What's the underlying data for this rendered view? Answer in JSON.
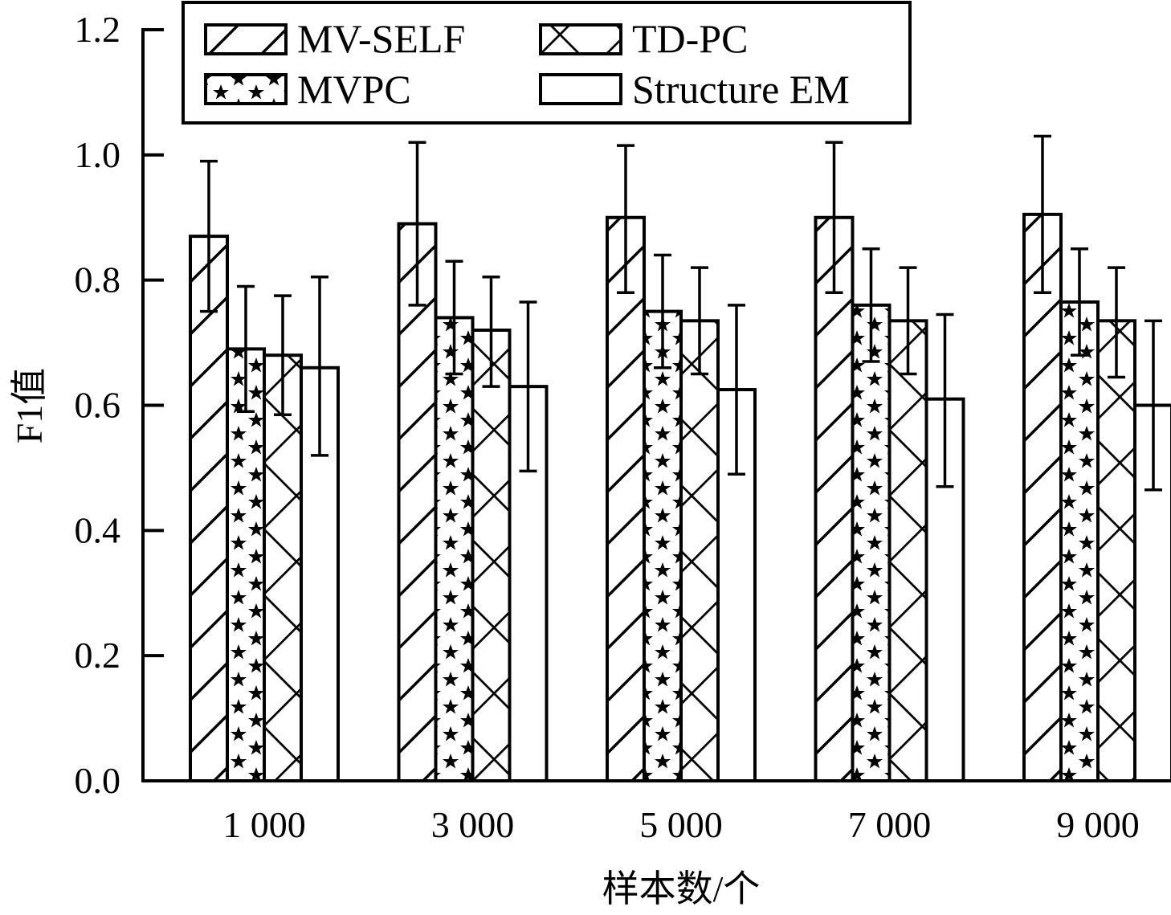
{
  "chart_data": {
    "type": "bar",
    "title": "",
    "xlabel": "样本数/个",
    "ylabel": "F1值",
    "ylim": [
      0,
      1.2
    ],
    "yticks": [
      "0.0",
      "0.2",
      "0.4",
      "0.6",
      "0.8",
      "1.0",
      "1.2"
    ],
    "categories": [
      "1 000",
      "3 000",
      "5 000",
      "7 000",
      "9 000"
    ],
    "legend_position": "top",
    "grid": false,
    "series": [
      {
        "name": "MV-SELF",
        "pattern": "diagonal-hatch",
        "values": [
          0.87,
          0.89,
          0.9,
          0.9,
          0.905
        ],
        "err_low": [
          0.75,
          0.76,
          0.78,
          0.78,
          0.78
        ],
        "err_high": [
          0.99,
          1.02,
          1.015,
          1.02,
          1.03
        ]
      },
      {
        "name": "MVPC",
        "pattern": "stars",
        "values": [
          0.69,
          0.74,
          0.75,
          0.76,
          0.765
        ],
        "err_low": [
          0.59,
          0.65,
          0.66,
          0.67,
          0.68
        ],
        "err_high": [
          0.79,
          0.83,
          0.84,
          0.85,
          0.85
        ]
      },
      {
        "name": "TD-PC",
        "pattern": "cross-hatch",
        "values": [
          0.68,
          0.72,
          0.735,
          0.735,
          0.735
        ],
        "err_low": [
          0.585,
          0.63,
          0.65,
          0.65,
          0.645
        ],
        "err_high": [
          0.775,
          0.805,
          0.82,
          0.82,
          0.82
        ]
      },
      {
        "name": "Structure EM",
        "pattern": "none",
        "values": [
          0.66,
          0.63,
          0.625,
          0.61,
          0.6
        ],
        "err_low": [
          0.52,
          0.495,
          0.49,
          0.47,
          0.465
        ],
        "err_high": [
          0.805,
          0.765,
          0.76,
          0.745,
          0.735
        ]
      }
    ],
    "colors": {
      "stroke": "#000000",
      "fill": "#ffffff"
    }
  }
}
